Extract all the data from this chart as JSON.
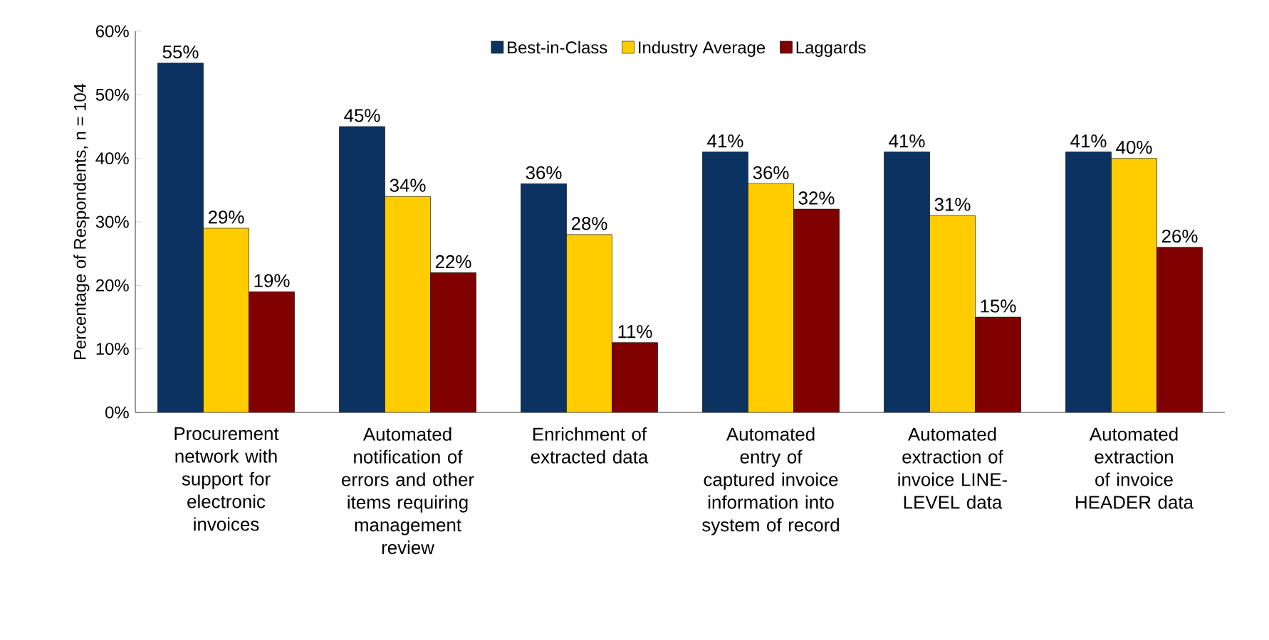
{
  "chart_data": {
    "type": "bar",
    "ylabel": "Percentage of Respondents, n = 104",
    "categories": [
      "Procurement network with support for electronic invoices",
      "Automated notification of errors and other items requiring management review",
      "Enrichment of extracted data",
      "Automated entry of captured invoice information into system of record",
      "Automated extraction of invoice LINE-LEVEL data",
      "Automated extraction of invoice HEADER data"
    ],
    "series": [
      {
        "name": "Best-in-Class",
        "color": "#0b3261",
        "values": [
          55,
          45,
          36,
          41,
          41,
          41
        ],
        "value_labels": [
          "55%",
          "45%",
          "36%",
          "41%",
          "41%",
          "41%"
        ]
      },
      {
        "name": "Industry Average",
        "color": "#ffcc00",
        "values": [
          29,
          34,
          28,
          36,
          31,
          40
        ],
        "value_labels": [
          "29%",
          "34%",
          "28%",
          "36%",
          "31%",
          "40%"
        ]
      },
      {
        "name": "Laggards",
        "color": "#800000",
        "values": [
          19,
          22,
          11,
          32,
          15,
          26
        ],
        "value_labels": [
          "19%",
          "22%",
          "11%",
          "32%",
          "15%",
          "26%"
        ]
      }
    ],
    "ylim": [
      0,
      60
    ],
    "yticks": [
      {
        "value": 0,
        "label": "0%"
      },
      {
        "value": 10,
        "label": "10%"
      },
      {
        "value": 20,
        "label": "20%"
      },
      {
        "value": 30,
        "label": "30%"
      },
      {
        "value": 40,
        "label": "40%"
      },
      {
        "value": 50,
        "label": "50%"
      },
      {
        "value": 60,
        "label": "60%"
      }
    ],
    "legend": "top",
    "grid": false
  }
}
